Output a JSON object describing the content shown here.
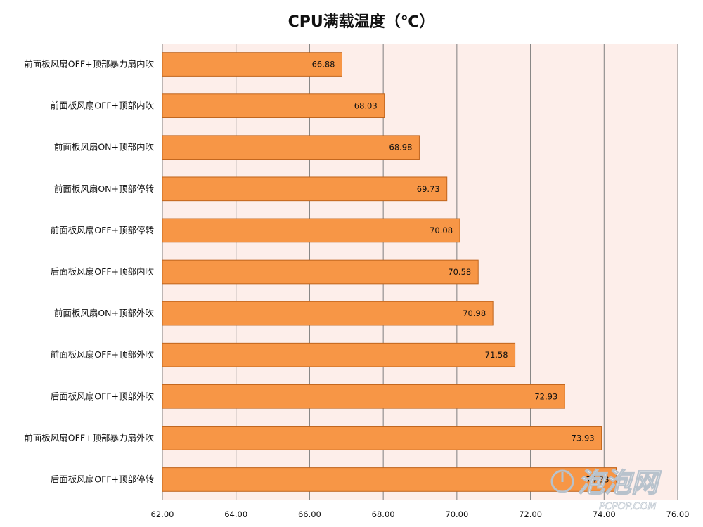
{
  "chart_data": {
    "type": "bar",
    "orientation": "horizontal",
    "title": "CPU满载温度（℃）",
    "xlabel": "",
    "ylabel": "",
    "xlim": [
      62,
      76
    ],
    "ticks": [
      "62.00",
      "64.00",
      "66.00",
      "68.00",
      "70.00",
      "72.00",
      "74.00",
      "76.00"
    ],
    "grid": true,
    "legend": "none",
    "categories": [
      "前面板风扇OFF+顶部暴力扇内吹",
      "前面板风扇OFF+顶部内吹",
      "前面板风扇ON+顶部内吹",
      "前面板风扇ON+顶部停转",
      "前面板风扇OFF+顶部停转",
      "后面板风扇OFF+顶部内吹",
      "前面板风扇ON+顶部外吹",
      "前面板风扇OFF+顶部外吹",
      "后面板风扇OFF+顶部外吹",
      "前面板风扇OFF+顶部暴力扇外吹",
      "后面板风扇OFF+顶部停转"
    ],
    "values": [
      66.88,
      68.03,
      68.98,
      69.73,
      70.08,
      70.58,
      70.98,
      71.58,
      72.93,
      73.93,
      74.33
    ],
    "value_labels": [
      "66.88",
      "68.03",
      "68.98",
      "69.73",
      "70.08",
      "70.58",
      "70.98",
      "71.58",
      "72.93",
      "73.93",
      "74.33"
    ],
    "colors": {
      "bar_fill": "#f79646",
      "bar_stroke": "#c0641c",
      "plot_bg": "#fdeeea",
      "grid": "#7f7f7f"
    }
  },
  "watermark": {
    "logo_text": "泡泡网",
    "site_text": "PCPOP.COM",
    "icon": "power-icon"
  }
}
